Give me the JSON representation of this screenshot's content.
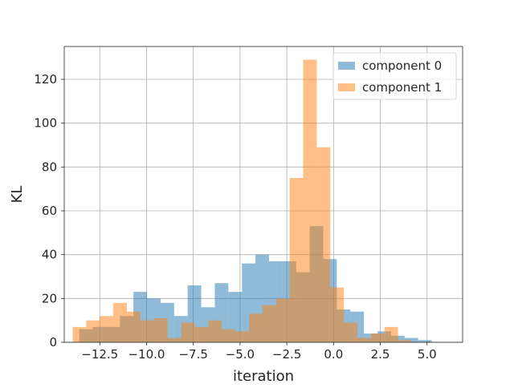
{
  "chart_data": {
    "type": "bar",
    "subtype": "histogram",
    "title": "",
    "xlabel": "iteration",
    "ylabel": "KL",
    "xlim": [
      -14.4,
      6.9
    ],
    "ylim": [
      0,
      135
    ],
    "grid": true,
    "legend_position": "top-right",
    "x_ticks": [
      -12.5,
      -10.0,
      -7.5,
      -5.0,
      -2.5,
      0.0,
      2.5,
      5.0
    ],
    "x_tick_labels": [
      "−12.5",
      "−10.0",
      "−7.5",
      "−5.0",
      "−2.5",
      "0.0",
      "2.5",
      "5.0"
    ],
    "y_ticks": [
      0,
      20,
      40,
      60,
      80,
      100,
      120
    ],
    "y_tick_labels": [
      "0",
      "20",
      "40",
      "60",
      "80",
      "100",
      "120"
    ],
    "series": [
      {
        "name": "component 0",
        "color": "#1f77b4",
        "alpha": 0.5,
        "bin_start": -13.6,
        "bin_width": 0.725,
        "values": [
          6,
          7,
          7,
          12,
          23,
          20,
          18,
          12,
          26,
          16,
          27,
          23,
          36,
          40,
          37,
          37,
          32,
          53,
          38,
          15,
          14,
          4,
          5,
          3,
          2,
          1
        ]
      },
      {
        "name": "component 1",
        "color": "#ff7f0e",
        "alpha": 0.5,
        "bin_start": -13.95,
        "bin_width": 0.725,
        "values": [
          7,
          10,
          12,
          18,
          14,
          10,
          11,
          2,
          9,
          7,
          10,
          6,
          5,
          13,
          17,
          20,
          75,
          129,
          89,
          25,
          9,
          2,
          4,
          7,
          1
        ]
      }
    ]
  }
}
